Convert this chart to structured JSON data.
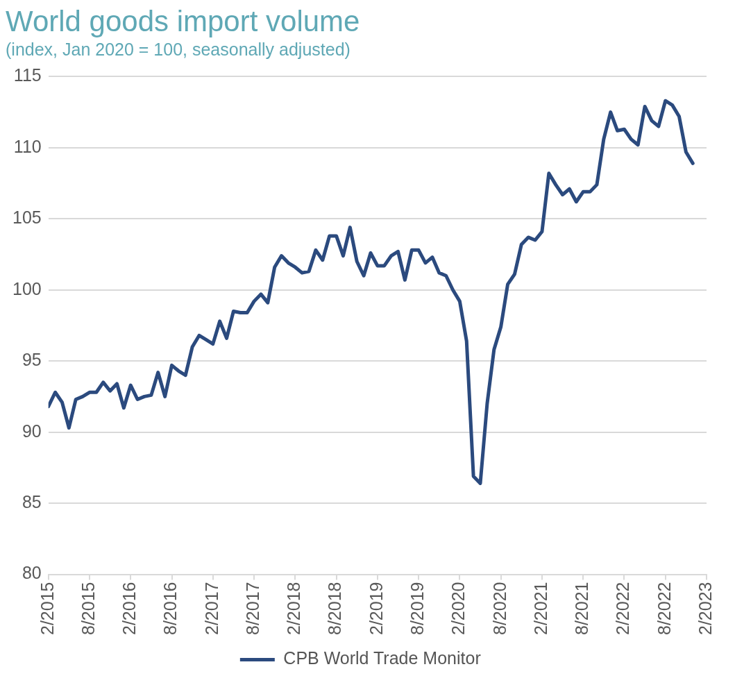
{
  "chart_data": {
    "type": "line",
    "title": "World goods import volume",
    "subtitle": "(index, Jan 2020 = 100, seasonally adjusted)",
    "x": [
      "2015-02",
      "2015-03",
      "2015-04",
      "2015-05",
      "2015-06",
      "2015-07",
      "2015-08",
      "2015-09",
      "2015-10",
      "2015-11",
      "2015-12",
      "2016-01",
      "2016-02",
      "2016-03",
      "2016-04",
      "2016-05",
      "2016-06",
      "2016-07",
      "2016-08",
      "2016-09",
      "2016-10",
      "2016-11",
      "2016-12",
      "2017-01",
      "2017-02",
      "2017-03",
      "2017-04",
      "2017-05",
      "2017-06",
      "2017-07",
      "2017-08",
      "2017-09",
      "2017-10",
      "2017-11",
      "2017-12",
      "2018-01",
      "2018-02",
      "2018-03",
      "2018-04",
      "2018-05",
      "2018-06",
      "2018-07",
      "2018-08",
      "2018-09",
      "2018-10",
      "2018-11",
      "2018-12",
      "2019-01",
      "2019-02",
      "2019-03",
      "2019-04",
      "2019-05",
      "2019-06",
      "2019-07",
      "2019-08",
      "2019-09",
      "2019-10",
      "2019-11",
      "2019-12",
      "2020-01",
      "2020-02",
      "2020-03",
      "2020-04",
      "2020-05",
      "2020-06",
      "2020-07",
      "2020-08",
      "2020-09",
      "2020-10",
      "2020-11",
      "2020-12",
      "2021-01",
      "2021-02",
      "2021-03",
      "2021-04",
      "2021-05",
      "2021-06",
      "2021-07",
      "2021-08",
      "2021-09",
      "2021-10",
      "2021-11",
      "2021-12",
      "2022-01",
      "2022-02",
      "2022-03",
      "2022-04",
      "2022-05",
      "2022-06",
      "2022-07",
      "2022-08",
      "2022-09",
      "2022-10",
      "2022-11",
      "2022-12"
    ],
    "series": [
      {
        "name": "CPB World Trade Monitor",
        "color": "#2b4a7e",
        "values": [
          91.8,
          92.8,
          92.1,
          90.3,
          92.3,
          92.5,
          92.8,
          92.8,
          93.5,
          92.9,
          93.4,
          91.7,
          93.3,
          92.3,
          92.5,
          92.6,
          94.2,
          92.5,
          94.7,
          94.3,
          94.0,
          96.0,
          96.8,
          96.5,
          96.2,
          97.8,
          96.6,
          98.5,
          98.4,
          98.4,
          99.2,
          99.7,
          99.1,
          101.6,
          102.4,
          101.9,
          101.6,
          101.2,
          101.3,
          102.8,
          102.1,
          103.8,
          103.8,
          102.4,
          104.4,
          102.0,
          101.0,
          102.6,
          101.7,
          101.7,
          102.4,
          102.7,
          100.7,
          102.8,
          102.8,
          101.9,
          102.3,
          101.2,
          101.0,
          100.0,
          99.2,
          96.4,
          86.9,
          86.4,
          92.0,
          95.8,
          97.4,
          100.4,
          101.1,
          103.2,
          103.7,
          103.5,
          104.1,
          108.2,
          107.4,
          106.7,
          107.1,
          106.2,
          106.9,
          106.9,
          107.4,
          110.6,
          112.5,
          111.2,
          111.3,
          110.6,
          110.2,
          112.9,
          111.9,
          111.5,
          113.3,
          113.0,
          112.2,
          109.7,
          108.9
        ]
      }
    ],
    "xlim": [
      "2015-02",
      "2023-02"
    ],
    "xticks": [
      {
        "value": "2015-02",
        "label": "2/2015"
      },
      {
        "value": "2015-08",
        "label": "8/2015"
      },
      {
        "value": "2016-02",
        "label": "2/2016"
      },
      {
        "value": "2016-08",
        "label": "8/2016"
      },
      {
        "value": "2017-02",
        "label": "2/2017"
      },
      {
        "value": "2017-08",
        "label": "8/2017"
      },
      {
        "value": "2018-02",
        "label": "2/2018"
      },
      {
        "value": "2018-08",
        "label": "8/2018"
      },
      {
        "value": "2019-02",
        "label": "2/2019"
      },
      {
        "value": "2019-08",
        "label": "8/2019"
      },
      {
        "value": "2020-02",
        "label": "2/2020"
      },
      {
        "value": "2020-08",
        "label": "8/2020"
      },
      {
        "value": "2021-02",
        "label": "2/2021"
      },
      {
        "value": "2021-08",
        "label": "8/2021"
      },
      {
        "value": "2022-02",
        "label": "2/2022"
      },
      {
        "value": "2022-08",
        "label": "8/2022"
      },
      {
        "value": "2023-02",
        "label": "2/2023"
      }
    ],
    "ylim": [
      80,
      115
    ],
    "yticks": [
      80,
      85,
      90,
      95,
      100,
      105,
      110,
      115
    ],
    "grid": "y",
    "legend": "bottom",
    "marker": "none",
    "line_style": "solid"
  }
}
